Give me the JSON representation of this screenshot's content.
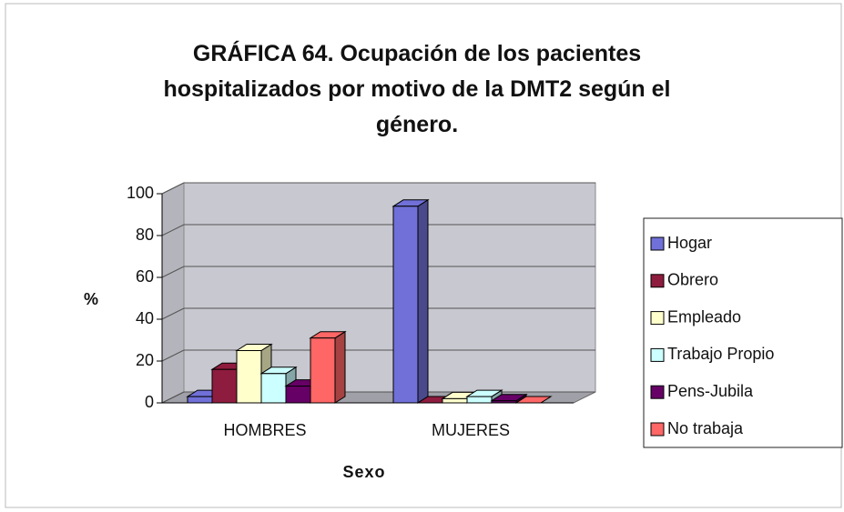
{
  "chart_data": {
    "type": "bar3d",
    "title": "GRÁFICA 64. Ocupación de los pacientes hospitalizados por motivo de la DMT2 según el género.",
    "xlabel": "Sexo",
    "ylabel": "%",
    "categories": [
      "HOMBRES",
      "MUJERES"
    ],
    "series": [
      {
        "name": "Hogar",
        "color": "#7070d8",
        "values": [
          3,
          94
        ]
      },
      {
        "name": "Obrero",
        "color": "#8e1c3e",
        "values": [
          16,
          0
        ]
      },
      {
        "name": "Empleado",
        "color": "#ffffcc",
        "values": [
          25,
          2
        ]
      },
      {
        "name": "Trabajo Propio",
        "color": "#ccffff",
        "values": [
          14,
          3
        ]
      },
      {
        "name": "Pens-Jubila",
        "color": "#660066",
        "values": [
          8,
          1
        ]
      },
      {
        "name": "No trabaja",
        "color": "#ff6666",
        "values": [
          31,
          0
        ]
      }
    ],
    "ylim": [
      0,
      100
    ],
    "yticks": [
      0,
      20,
      40,
      60,
      80,
      100
    ],
    "grid": true,
    "legend": "right"
  }
}
